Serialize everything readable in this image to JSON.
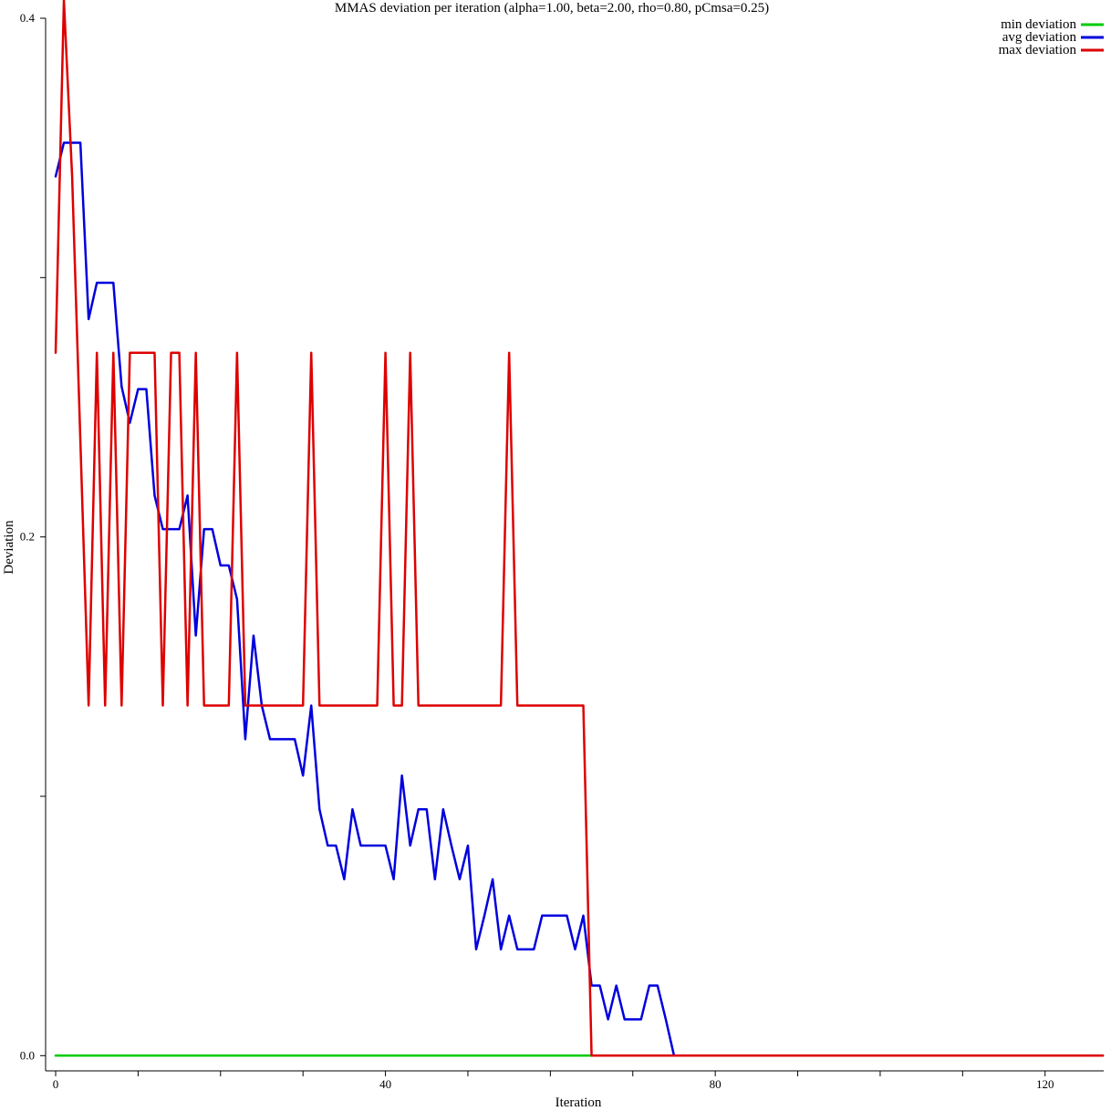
{
  "chart_data": {
    "type": "line",
    "title": "MMAS deviation per iteration (alpha=1.00, beta=2.00, rho=0.80, pCmsa=0.25)",
    "xlabel": "Iteration",
    "ylabel": "Deviation",
    "xlim": [
      0,
      127
    ],
    "ylim": [
      -0.002,
      0.4
    ],
    "x_ticks_labeled": [
      0,
      40,
      80,
      120
    ],
    "x_tick_step": 10,
    "y_ticks_labeled": [
      "0.0",
      "0.2",
      "0.4"
    ],
    "y_tick_step": 0.1,
    "grid": false,
    "legend_position": "top-right",
    "series": [
      {
        "name": "min deviation",
        "color": "#00cc00",
        "values": [
          0,
          0,
          0,
          0,
          0,
          0,
          0,
          0,
          0,
          0,
          0,
          0,
          0,
          0,
          0,
          0,
          0,
          0,
          0,
          0,
          0,
          0,
          0,
          0,
          0,
          0,
          0,
          0,
          0,
          0,
          0,
          0,
          0,
          0,
          0,
          0,
          0,
          0,
          0,
          0,
          0,
          0,
          0,
          0,
          0,
          0,
          0,
          0,
          0,
          0,
          0,
          0,
          0,
          0,
          0,
          0,
          0,
          0,
          0,
          0,
          0,
          0,
          0,
          0,
          0,
          0,
          0,
          0,
          0,
          0,
          0,
          0,
          0,
          0,
          0,
          0,
          0,
          0,
          0,
          0,
          0,
          0,
          0,
          0,
          0,
          0,
          0,
          0,
          0,
          0,
          0,
          0,
          0,
          0,
          0,
          0,
          0,
          0,
          0,
          0,
          0,
          0,
          0,
          0,
          0,
          0,
          0,
          0,
          0,
          0,
          0,
          0,
          0,
          0,
          0,
          0,
          0,
          0,
          0,
          0,
          0,
          0,
          0,
          0,
          0,
          0,
          0,
          0
        ]
      },
      {
        "name": "avg deviation",
        "color": "#0000dd",
        "values": [
          0.339,
          0.352,
          0.352,
          0.352,
          0.284,
          0.298,
          0.298,
          0.298,
          0.258,
          0.244,
          0.257,
          0.257,
          0.216,
          0.203,
          0.203,
          0.203,
          0.216,
          0.162,
          0.203,
          0.203,
          0.189,
          0.189,
          0.176,
          0.122,
          0.162,
          0.135,
          0.122,
          0.122,
          0.122,
          0.122,
          0.108,
          0.135,
          0.095,
          0.081,
          0.081,
          0.068,
          0.095,
          0.081,
          0.081,
          0.081,
          0.081,
          0.068,
          0.108,
          0.081,
          0.095,
          0.095,
          0.068,
          0.095,
          0.081,
          0.068,
          0.081,
          0.041,
          0.054,
          0.068,
          0.041,
          0.054,
          0.041,
          0.041,
          0.041,
          0.054,
          0.054,
          0.054,
          0.054,
          0.041,
          0.054,
          0.027,
          0.027,
          0.014,
          0.027,
          0.014,
          0.014,
          0.014,
          0.027,
          0.027,
          0.014,
          0,
          0,
          0,
          0,
          0,
          0,
          0,
          0,
          0,
          0,
          0,
          0,
          0,
          0,
          0,
          0,
          0,
          0,
          0,
          0,
          0,
          0,
          0,
          0,
          0,
          0,
          0,
          0,
          0,
          0,
          0,
          0,
          0,
          0,
          0,
          0,
          0,
          0,
          0,
          0,
          0,
          0,
          0,
          0,
          0,
          0,
          0,
          0,
          0,
          0,
          0,
          0,
          0
        ]
      },
      {
        "name": "max deviation",
        "color": "#dd0000",
        "values": [
          0.271,
          0.407,
          0.339,
          0.237,
          0.135,
          0.271,
          0.135,
          0.271,
          0.135,
          0.271,
          0.271,
          0.271,
          0.271,
          0.135,
          0.271,
          0.271,
          0.135,
          0.271,
          0.135,
          0.135,
          0.135,
          0.135,
          0.271,
          0.135,
          0.135,
          0.135,
          0.135,
          0.135,
          0.135,
          0.135,
          0.135,
          0.271,
          0.135,
          0.135,
          0.135,
          0.135,
          0.135,
          0.135,
          0.135,
          0.135,
          0.271,
          0.135,
          0.135,
          0.271,
          0.135,
          0.135,
          0.135,
          0.135,
          0.135,
          0.135,
          0.135,
          0.135,
          0.135,
          0.135,
          0.135,
          0.271,
          0.135,
          0.135,
          0.135,
          0.135,
          0.135,
          0.135,
          0.135,
          0.135,
          0.135,
          0,
          0,
          0,
          0,
          0,
          0,
          0,
          0,
          0,
          0,
          0,
          0,
          0,
          0,
          0,
          0,
          0,
          0,
          0,
          0,
          0,
          0,
          0,
          0,
          0,
          0,
          0,
          0,
          0,
          0,
          0,
          0,
          0,
          0,
          0,
          0,
          0,
          0,
          0,
          0,
          0,
          0,
          0,
          0,
          0,
          0,
          0,
          0,
          0,
          0,
          0,
          0,
          0,
          0,
          0,
          0,
          0,
          0,
          0,
          0,
          0,
          0,
          0
        ]
      }
    ]
  }
}
